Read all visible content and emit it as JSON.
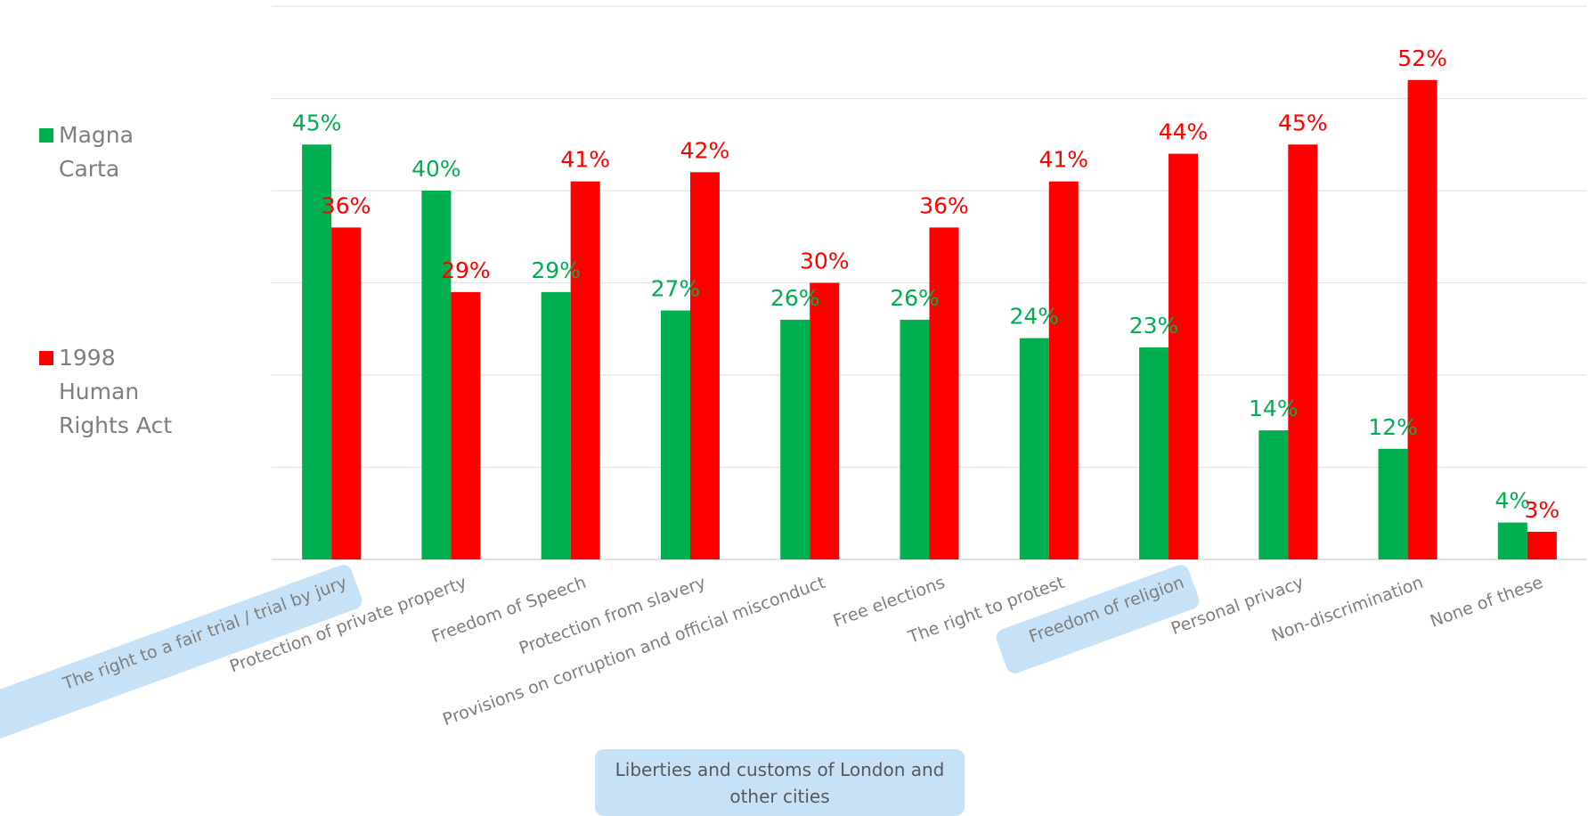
{
  "chart_data": {
    "type": "bar",
    "categories": [
      "The right to a fair trial / trial by jury",
      "Protection of private property",
      "Freedom of Speech",
      "Protection from slavery",
      "Provisions on corruption and official misconduct",
      "Free elections",
      "The right to protest",
      "Freedom of religion",
      "Personal privacy",
      "Non-discrimination",
      "None of these"
    ],
    "series": [
      {
        "name": "Magna Carta",
        "color": "#00b050",
        "values": [
          45,
          40,
          29,
          27,
          26,
          26,
          24,
          23,
          14,
          12,
          4
        ]
      },
      {
        "name": "1998 Human Rights Act",
        "color": "#ff0000",
        "values": [
          36,
          29,
          41,
          42,
          30,
          36,
          41,
          44,
          45,
          52,
          3
        ]
      }
    ],
    "value_suffix": "%",
    "ylim": [
      0,
      60
    ],
    "grid": true,
    "legend": "left",
    "highlighted_categories": [
      "The right to a fair trial / trial by jury",
      "Freedom of religion"
    ]
  },
  "legend": {
    "magna_carta": "Magna Carta",
    "human_rights_act": "1998 Human Rights Act"
  },
  "callout": {
    "text": "Liberties and customs of London and other cities"
  }
}
